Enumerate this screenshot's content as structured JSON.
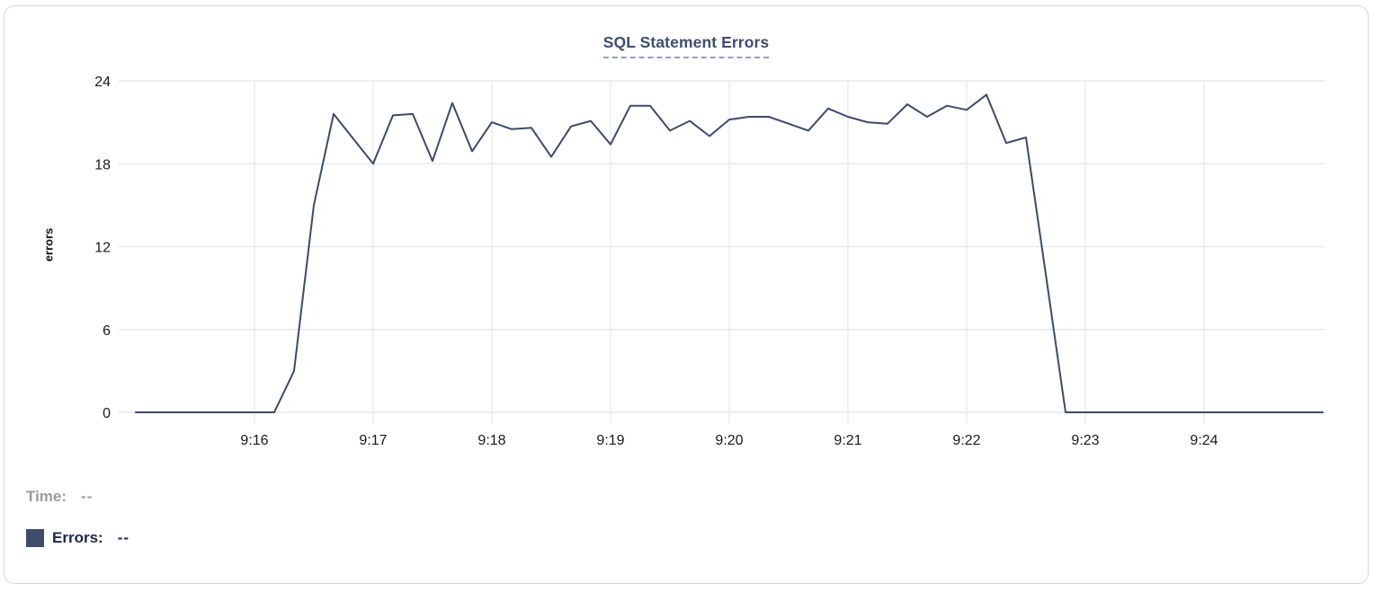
{
  "card": {
    "title": "SQL Statement Errors"
  },
  "chart_data": {
    "type": "line",
    "title": "SQL Statement Errors",
    "xlabel": "",
    "ylabel": "errors",
    "ylim": [
      0,
      24
    ],
    "y_ticks": [
      24,
      18,
      12,
      6,
      0
    ],
    "x_ticks": [
      "9:16",
      "9:17",
      "9:18",
      "9:19",
      "9:20",
      "9:21",
      "9:22",
      "9:23",
      "9:24"
    ],
    "x_range": [
      "9:15:00",
      "9:25:00"
    ],
    "interval_seconds": 10,
    "grid": true,
    "legend_position": "none",
    "line_color": "#3c4b68",
    "grid_color": "#e9e9eb",
    "tick_color": "#191919",
    "series": [
      {
        "name": "Errors",
        "points": [
          [
            "9:15:00",
            0
          ],
          [
            "9:15:10",
            0
          ],
          [
            "9:15:20",
            0
          ],
          [
            "9:15:30",
            0
          ],
          [
            "9:15:40",
            0
          ],
          [
            "9:15:50",
            0
          ],
          [
            "9:16:00",
            0
          ],
          [
            "9:16:10",
            0
          ],
          [
            "9:16:20",
            3
          ],
          [
            "9:16:30",
            15
          ],
          [
            "9:16:40",
            21.6
          ],
          [
            "9:16:50",
            19.8
          ],
          [
            "9:17:00",
            18
          ],
          [
            "9:17:10",
            21.5
          ],
          [
            "9:17:20",
            21.6
          ],
          [
            "9:17:30",
            18.2
          ],
          [
            "9:17:40",
            22.4
          ],
          [
            "9:17:50",
            18.9
          ],
          [
            "9:18:00",
            21
          ],
          [
            "9:18:10",
            20.5
          ],
          [
            "9:18:20",
            20.6
          ],
          [
            "9:18:30",
            18.5
          ],
          [
            "9:18:40",
            20.7
          ],
          [
            "9:18:50",
            21.1
          ],
          [
            "9:19:00",
            19.4
          ],
          [
            "9:19:10",
            22.2
          ],
          [
            "9:19:20",
            22.2
          ],
          [
            "9:19:30",
            20.4
          ],
          [
            "9:19:40",
            21.1
          ],
          [
            "9:19:50",
            20
          ],
          [
            "9:20:00",
            21.2
          ],
          [
            "9:20:10",
            21.4
          ],
          [
            "9:20:20",
            21.4
          ],
          [
            "9:20:30",
            20.9
          ],
          [
            "9:20:40",
            20.4
          ],
          [
            "9:20:50",
            22
          ],
          [
            "9:21:00",
            21.4
          ],
          [
            "9:21:10",
            21
          ],
          [
            "9:21:20",
            20.9
          ],
          [
            "9:21:30",
            22.3
          ],
          [
            "9:21:40",
            21.4
          ],
          [
            "9:21:50",
            22.2
          ],
          [
            "9:22:00",
            21.9
          ],
          [
            "9:22:10",
            23
          ],
          [
            "9:22:20",
            19.5
          ],
          [
            "9:22:30",
            19.9
          ],
          [
            "9:22:40",
            10
          ],
          [
            "9:22:50",
            0
          ],
          [
            "9:23:00",
            0
          ],
          [
            "9:23:10",
            0
          ],
          [
            "9:23:20",
            0
          ],
          [
            "9:23:30",
            0
          ],
          [
            "9:23:40",
            0
          ],
          [
            "9:23:50",
            0
          ],
          [
            "9:24:00",
            0
          ],
          [
            "9:24:10",
            0
          ],
          [
            "9:24:20",
            0
          ],
          [
            "9:24:30",
            0
          ],
          [
            "9:24:40",
            0
          ],
          [
            "9:24:50",
            0
          ],
          [
            "9:25:00",
            0
          ]
        ]
      }
    ]
  },
  "tooltip": {
    "time_label": "Time:",
    "time_value": "--",
    "errors_label": "Errors:",
    "errors_value": "--",
    "swatch_color": "#3e4c69"
  }
}
